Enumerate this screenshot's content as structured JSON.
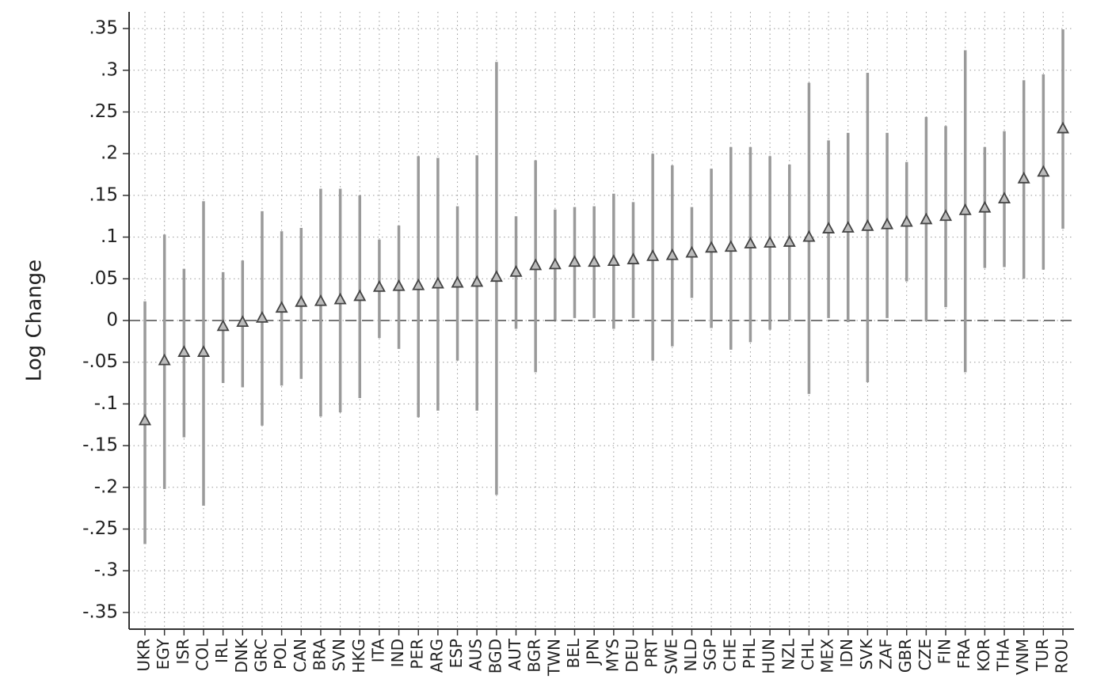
{
  "chart_data": {
    "type": "errorbar",
    "y_label": "Log Change",
    "categories": [
      "UKR",
      "EGY",
      "ISR",
      "COL",
      "IRL",
      "DNK",
      "GRC",
      "POL",
      "CAN",
      "BRA",
      "SVN",
      "HKG",
      "ITA",
      "IND",
      "PER",
      "ARG",
      "ESP",
      "AUS",
      "BGD",
      "AUT",
      "BGR",
      "TWN",
      "BEL",
      "JPN",
      "MYS",
      "DEU",
      "PRT",
      "SWE",
      "NLD",
      "SGP",
      "CHE",
      "PHL",
      "HUN",
      "NZL",
      "CHL",
      "MEX",
      "IDN",
      "SVK",
      "ZAF",
      "GBR",
      "CZE",
      "FIN",
      "FRA",
      "KOR",
      "THA",
      "VNM",
      "TUR",
      "ROU"
    ],
    "values": [
      -0.12,
      -0.048,
      -0.038,
      -0.038,
      -0.007,
      -0.002,
      0.003,
      0.015,
      0.022,
      0.023,
      0.025,
      0.029,
      0.04,
      0.041,
      0.042,
      0.044,
      0.045,
      0.046,
      0.052,
      0.058,
      0.066,
      0.067,
      0.07,
      0.07,
      0.071,
      0.073,
      0.077,
      0.078,
      0.081,
      0.087,
      0.088,
      0.092,
      0.093,
      0.094,
      0.1,
      0.11,
      0.111,
      0.113,
      0.115,
      0.118,
      0.121,
      0.125,
      0.132,
      0.135,
      0.146,
      0.17,
      0.178,
      0.23
    ],
    "ci_low": [
      -0.268,
      -0.202,
      -0.14,
      -0.222,
      -0.075,
      -0.08,
      -0.126,
      -0.078,
      -0.07,
      -0.115,
      -0.11,
      -0.093,
      -0.021,
      -0.034,
      -0.116,
      -0.108,
      -0.048,
      -0.108,
      -0.209,
      -0.01,
      -0.062,
      0.001,
      0.003,
      0.003,
      -0.01,
      0.003,
      -0.048,
      -0.031,
      0.027,
      -0.009,
      -0.035,
      -0.026,
      -0.011,
      0.0,
      -0.088,
      0.003,
      -0.002,
      -0.074,
      0.003,
      0.047,
      -0.001,
      0.016,
      -0.062,
      0.063,
      0.064,
      0.05,
      0.061,
      0.11
    ],
    "ci_high": [
      0.023,
      0.103,
      0.062,
      0.143,
      0.058,
      0.072,
      0.131,
      0.107,
      0.111,
      0.158,
      0.158,
      0.15,
      0.097,
      0.114,
      0.197,
      0.195,
      0.137,
      0.198,
      0.31,
      0.125,
      0.192,
      0.133,
      0.136,
      0.137,
      0.152,
      0.142,
      0.2,
      0.186,
      0.136,
      0.182,
      0.208,
      0.208,
      0.197,
      0.187,
      0.285,
      0.216,
      0.225,
      0.297,
      0.225,
      0.19,
      0.244,
      0.233,
      0.324,
      0.208,
      0.227,
      0.288,
      0.295,
      0.349
    ],
    "marker_color": "#444444",
    "ci_color": "#9a9a9a",
    "ylim": [
      -0.37,
      0.37
    ],
    "yticks": [
      {
        "value": 0.35,
        "label": ".35"
      },
      {
        "value": 0.3,
        "label": ".3"
      },
      {
        "value": 0.25,
        "label": ".25"
      },
      {
        "value": 0.2,
        "label": ".2"
      },
      {
        "value": 0.15,
        "label": ".15"
      },
      {
        "value": 0.1,
        "label": ".1"
      },
      {
        "value": 0.05,
        "label": ".05"
      },
      0,
      {
        "value": -0.05,
        "label": "-.05"
      },
      {
        "value": -0.1,
        "label": "-.1"
      },
      {
        "value": -0.15,
        "label": "-.15"
      },
      {
        "value": -0.2,
        "label": "-.2"
      },
      {
        "value": -0.25,
        "label": "-.25"
      },
      {
        "value": -0.3,
        "label": "-.3"
      },
      {
        "value": -0.35,
        "label": "-.35"
      }
    ],
    "grid": true,
    "reference_line": 0
  }
}
